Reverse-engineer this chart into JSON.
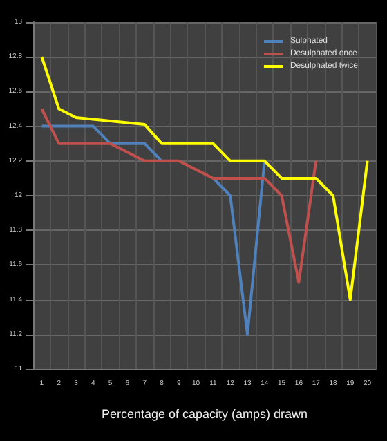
{
  "chart_data": {
    "type": "line",
    "xlabel": "Percentage of capacity (amps) drawn",
    "categories": [
      "1",
      "2",
      "3",
      "4",
      "5",
      "6",
      "7",
      "8",
      "9",
      "10",
      "11",
      "12",
      "13",
      "14",
      "15",
      "16",
      "17",
      "18",
      "19",
      "20"
    ],
    "series": [
      {
        "name": "Sulphated",
        "color": "#4f81bd",
        "values": [
          12.4,
          12.4,
          12.4,
          12.4,
          12.3,
          12.3,
          12.3,
          12.2,
          null,
          null,
          12.1,
          12.0,
          11.2,
          12.2,
          null,
          null,
          null,
          null,
          null,
          null
        ]
      },
      {
        "name": "Desulphated once",
        "color": "#c0504d",
        "values": [
          12.5,
          12.3,
          12.3,
          12.3,
          12.3,
          12.25,
          12.2,
          12.2,
          12.2,
          12.15,
          12.1,
          12.1,
          12.1,
          12.1,
          12.0,
          11.5,
          12.2,
          null,
          null,
          null
        ]
      },
      {
        "name": "Desulphated twice",
        "color": "#ffff00",
        "values": [
          12.8,
          12.5,
          12.45,
          12.44,
          12.43,
          12.42,
          12.41,
          12.3,
          12.3,
          12.3,
          12.3,
          12.2,
          12.2,
          12.2,
          12.1,
          12.1,
          12.1,
          12.0,
          11.4,
          12.2
        ]
      }
    ],
    "ylim": [
      11,
      13
    ],
    "yticks": [
      11,
      11.2,
      11.4,
      11.6,
      11.8,
      12,
      12.2,
      12.4,
      12.6,
      12.8,
      13
    ],
    "grid": true,
    "legend": "top right",
    "marker": "none",
    "line_style": "solid"
  }
}
